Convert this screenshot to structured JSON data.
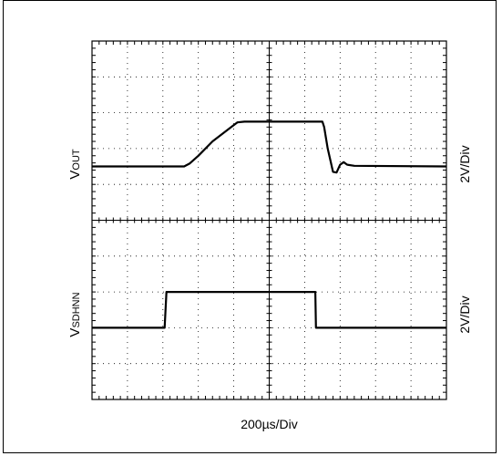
{
  "chart_data": {
    "type": "line",
    "title": "",
    "x_units": "divisions",
    "y_units": "divisions",
    "x_range": [
      0,
      10
    ],
    "y_range": [
      -5,
      5
    ],
    "grid": true,
    "horizontal_scale_label": "200µs/Div",
    "channels": [
      {
        "name_main": "V",
        "name_sub": "OUT",
        "scale_label": "2V/Div",
        "points": [
          [
            0,
            1.5
          ],
          [
            2.6,
            1.5
          ],
          [
            2.75,
            1.58
          ],
          [
            3.0,
            1.8
          ],
          [
            3.4,
            2.2
          ],
          [
            4.1,
            2.73
          ],
          [
            4.3,
            2.75
          ],
          [
            6.5,
            2.75
          ],
          [
            6.55,
            2.6
          ],
          [
            6.65,
            2.0
          ],
          [
            6.8,
            1.35
          ],
          [
            6.9,
            1.33
          ],
          [
            7.0,
            1.55
          ],
          [
            7.1,
            1.62
          ],
          [
            7.2,
            1.55
          ],
          [
            7.4,
            1.52
          ],
          [
            10.0,
            1.5
          ]
        ]
      },
      {
        "name_main": "V",
        "name_sub": "SDHNN",
        "scale_label": "2V/Div",
        "points": [
          [
            0,
            -3.0
          ],
          [
            2.05,
            -3.0
          ],
          [
            2.1,
            -2.0
          ],
          [
            4.3,
            -2.0
          ],
          [
            6.3,
            -2.0
          ],
          [
            6.32,
            -3.0
          ],
          [
            10.0,
            -3.0
          ]
        ]
      }
    ]
  }
}
